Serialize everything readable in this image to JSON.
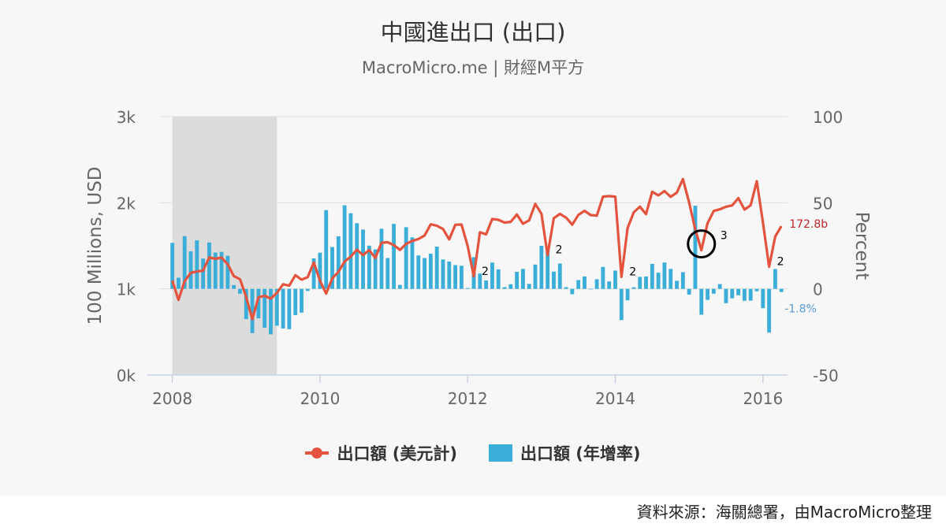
{
  "title": "中國進出口 (出口)",
  "subtitle": "MacroMicro.me | 財經M平方",
  "footer": "資料來源：海關總署，由MacroMicro整理",
  "legend": {
    "line_label": "出口額 (美元計)",
    "bar_label": "出口額 (年增率)"
  },
  "colors": {
    "line": "#e4533e",
    "bar": "#3aaed8",
    "recession": "#dcdcdc",
    "last_line_label": "#c0262b",
    "last_bar_label": "#5b9bd5"
  },
  "chart_data": {
    "type": "bar+line",
    "x_start": "2008-01",
    "x_ticks": [
      "2008",
      "2010",
      "2012",
      "2014",
      "2016"
    ],
    "xlim": [
      "2007-11",
      "2016-05"
    ],
    "y_left": {
      "label": "100 Millions, USD",
      "ticks": [
        "0k",
        "1k",
        "2k",
        "3k"
      ],
      "lim": [
        0,
        3000
      ]
    },
    "y_right": {
      "label": "Percent",
      "ticks": [
        "-50",
        "0",
        "50",
        "100"
      ],
      "lim": [
        -50,
        100
      ]
    },
    "shaded_region": [
      "2008-01",
      "2009-06"
    ],
    "series_line": {
      "name": "出口額 (美元計)",
      "values": [
        1097,
        873,
        1089,
        1187,
        1201,
        1212,
        1366,
        1348,
        1364,
        1286,
        1149,
        1111,
        904,
        648,
        903,
        919,
        887,
        954,
        1054,
        1037,
        1159,
        1107,
        1136,
        1307,
        1095,
        946,
        1121,
        1199,
        1317,
        1374,
        1454,
        1392,
        1450,
        1359,
        1535,
        1541,
        1508,
        1452,
        1522,
        1557,
        1579,
        1620,
        1750,
        1733,
        1695,
        1574,
        1744,
        1747,
        1500,
        1145,
        1657,
        1633,
        1812,
        1802,
        1770,
        1778,
        1863,
        1756,
        1795,
        1987,
        1873,
        1393,
        1821,
        1870,
        1827,
        1745,
        1859,
        1906,
        1857,
        1851,
        2071,
        2077,
        2071,
        1140,
        1706,
        1889,
        1955,
        1868,
        2127,
        2085,
        2136,
        2069,
        2117,
        2275,
        2005,
        1692,
        1449,
        1762,
        1904,
        1924,
        1954,
        1969,
        2053,
        1921,
        1970,
        2250,
        1770,
        1258,
        1608,
        1728
      ],
      "last_label": "172.8b"
    },
    "series_bar": {
      "name": "出口額 (年增率)",
      "values": [
        26.7,
        6.5,
        30.6,
        21.8,
        28.2,
        17.6,
        26.9,
        21.1,
        21.5,
        19.2,
        2.2,
        -2.8,
        -17.5,
        -25.7,
        -17.1,
        -22.6,
        -26.4,
        -21.4,
        -23.0,
        -23.4,
        -15.2,
        -13.8,
        -1.2,
        17.7,
        21.0,
        45.7,
        24.3,
        30.5,
        48.5,
        43.9,
        38.1,
        34.4,
        25.1,
        22.9,
        34.9,
        17.9,
        37.7,
        2.3,
        35.8,
        29.9,
        19.4,
        17.9,
        20.4,
        24.5,
        17.1,
        15.9,
        13.8,
        13.4,
        0.5,
        18.4,
        8.9,
        4.9,
        15.3,
        11.3,
        1.0,
        2.7,
        9.9,
        11.6,
        2.9,
        14.1,
        25.0,
        21.8,
        10.0,
        14.7,
        1.0,
        -3.1,
        5.1,
        7.2,
        -0.3,
        5.6,
        12.7,
        4.3,
        10.6,
        -18.1,
        -6.6,
        0.9,
        7.0,
        7.2,
        14.5,
        9.4,
        15.3,
        11.6,
        4.7,
        9.7,
        -3.3,
        48.3,
        -15.0,
        -6.4,
        -2.8,
        2.8,
        -8.3,
        -5.5,
        -3.7,
        -6.9,
        -6.8,
        -1.4,
        -11.2,
        -25.4,
        11.5,
        -1.8
      ],
      "last_label": "-1.8%"
    },
    "annotations": [
      {
        "month": "2012-02",
        "text": "2"
      },
      {
        "month": "2013-02",
        "text": "2"
      },
      {
        "month": "2014-02",
        "text": "2"
      },
      {
        "month": "2015-03",
        "text": "3",
        "circled": true
      },
      {
        "month": "2016-02",
        "text": "2"
      }
    ]
  }
}
